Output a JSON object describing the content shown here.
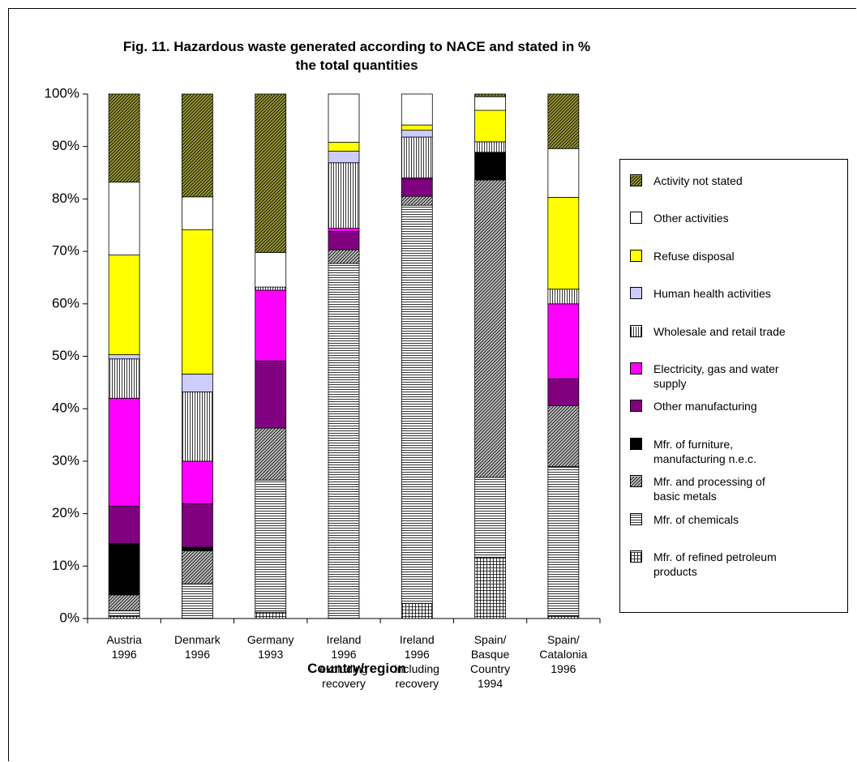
{
  "chart_data": {
    "type": "stacked_bar",
    "title": "Fig. 11. Hazardous waste generated according to NACE and stated in %\nthe total quantities",
    "x_label": "Country/region",
    "categories": [
      "Austria\n1996",
      "Denmark\n1996",
      "Germany\n1993",
      "Ireland\n1996\nexcluding\nrecovery",
      "Ireland\n1996\nincluding\nrecovery",
      "Spain/\nBasque\nCountry\n1994",
      "Spain/\nCatalonia\n1996"
    ],
    "ylim": [
      0,
      100
    ],
    "yticks": [
      {
        "value": 0,
        "label": "0%"
      },
      {
        "value": 10,
        "label": "10%"
      },
      {
        "value": 20,
        "label": "20%"
      },
      {
        "value": 30,
        "label": "30%"
      },
      {
        "value": 40,
        "label": "40%"
      },
      {
        "value": 50,
        "label": "50%"
      },
      {
        "value": 60,
        "label": "60%"
      },
      {
        "value": 70,
        "label": "70%"
      },
      {
        "value": 80,
        "label": "80%"
      },
      {
        "value": 90,
        "label": "90%"
      },
      {
        "value": 100,
        "label": "100%"
      }
    ],
    "legend": "right",
    "series": [
      {
        "name": "Mfr. of refined petroleum\nproducts",
        "color": "#ffffff",
        "pattern": "grid",
        "values": [
          0.5,
          0,
          1.2,
          0,
          2.9,
          11.7,
          0.5
        ]
      },
      {
        "name": "Mfr. of chemicals",
        "color": "#ffffff",
        "pattern": "horizontal",
        "values": [
          1.0,
          6.6,
          25.2,
          67.7,
          75.9,
          15.2,
          28.5
        ]
      },
      {
        "name": "Mfr. and processing of\nbasic metals",
        "color": "#c0c0c0",
        "pattern": "diagonal",
        "values": [
          3.0,
          6.3,
          9.9,
          2.6,
          1.7,
          56.7,
          11.6
        ]
      },
      {
        "name": "Mfr. of furniture,\nmanufacturing n.e.c.",
        "color": "#000000",
        "pattern": "none",
        "values": [
          9.8,
          0.7,
          0,
          0,
          0,
          5.3,
          0
        ]
      },
      {
        "name": "Other manufacturing",
        "color": "#800080",
        "pattern": "none",
        "values": [
          7.1,
          8.3,
          12.8,
          3.5,
          3.3,
          0,
          5.1
        ]
      },
      {
        "name": "Electricity, gas and water\nsupply",
        "color": "#ff00ff",
        "pattern": "none",
        "values": [
          20.6,
          8.1,
          13.5,
          0.6,
          0.2,
          0,
          14.3
        ]
      },
      {
        "name": "Wholesale and retail trade",
        "color": "#ffffff",
        "pattern": "vertical",
        "values": [
          7.5,
          13.2,
          0.6,
          12.5,
          7.8,
          2.0,
          2.8
        ]
      },
      {
        "name": "Human health activities",
        "color": "#ccccff",
        "pattern": "none",
        "values": [
          0.8,
          3.4,
          0,
          2.2,
          1.3,
          0,
          0
        ]
      },
      {
        "name": "Refuse disposal",
        "color": "#ffff00",
        "pattern": "none",
        "values": [
          19.0,
          27.5,
          0,
          1.7,
          1.0,
          6.0,
          17.5
        ]
      },
      {
        "name": "Other activities",
        "color": "#ffffff",
        "pattern": "none",
        "values": [
          13.9,
          6.3,
          6.6,
          9.2,
          5.9,
          2.6,
          9.3
        ]
      },
      {
        "name": "Activity not stated",
        "color": "#999933",
        "pattern": "diagonal",
        "values": [
          16.8,
          19.6,
          30.2,
          0,
          0,
          0.5,
          10.4
        ]
      }
    ]
  }
}
